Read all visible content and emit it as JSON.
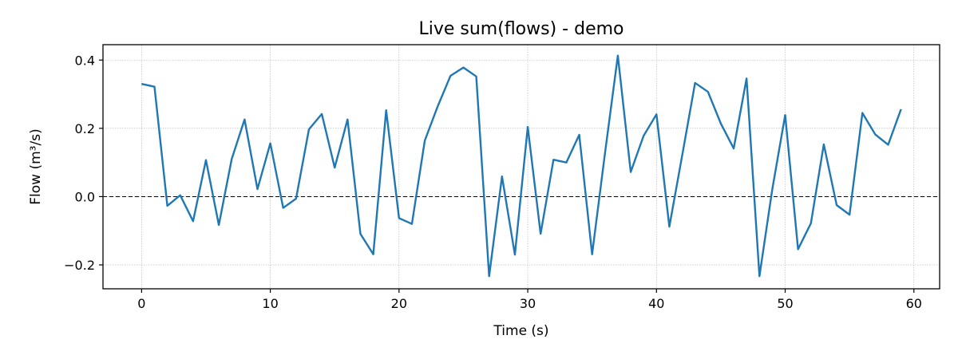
{
  "chart_data": {
    "type": "line",
    "title": "Live sum(flows) - demo",
    "xlabel": "Time (s)",
    "ylabel": "Flow (m³/s)",
    "xlim": [
      -3,
      62
    ],
    "ylim": [
      -0.27,
      0.445
    ],
    "xticks": [
      0,
      10,
      20,
      30,
      40,
      50,
      60
    ],
    "yticks": [
      -0.2,
      0.0,
      0.2,
      0.4
    ],
    "xtick_labels": [
      "0",
      "10",
      "20",
      "30",
      "40",
      "50",
      "60"
    ],
    "ytick_labels": [
      "−0.2",
      "0.0",
      "0.2",
      "0.4"
    ],
    "grid": true,
    "reference_line": {
      "y": 0.0,
      "style": "dashed",
      "color": "#000000"
    },
    "series": [
      {
        "color": "#1f77b4",
        "x": [
          0,
          1,
          2,
          3,
          4,
          5,
          6,
          7,
          8,
          9,
          10,
          11,
          12,
          13,
          14,
          15,
          16,
          17,
          18,
          19,
          20,
          21,
          22,
          23,
          24,
          25,
          26,
          27,
          28,
          29,
          30,
          31,
          32,
          33,
          34,
          35,
          36,
          37,
          38,
          39,
          40,
          41,
          42,
          43,
          44,
          45,
          46,
          47,
          48,
          49,
          50,
          51,
          52,
          53,
          54,
          55,
          56,
          57,
          58,
          59
        ],
        "values": [
          0.33,
          0.322,
          -0.027,
          0.004,
          -0.072,
          0.107,
          -0.083,
          0.11,
          0.226,
          0.022,
          0.156,
          -0.033,
          -0.006,
          0.197,
          0.242,
          0.085,
          0.226,
          -0.109,
          -0.169,
          0.253,
          -0.063,
          -0.08,
          0.164,
          0.264,
          0.354,
          0.378,
          0.352,
          -0.233,
          0.059,
          -0.17,
          0.204,
          -0.109,
          0.108,
          0.1,
          0.181,
          -0.169,
          0.127,
          0.413,
          0.072,
          0.178,
          0.241,
          -0.088,
          0.121,
          0.333,
          0.307,
          0.214,
          0.141,
          0.346,
          -0.233,
          0.022,
          0.239,
          -0.154,
          -0.078,
          0.153,
          -0.025,
          -0.053,
          0.245,
          0.182,
          0.152,
          0.256
        ]
      }
    ]
  }
}
